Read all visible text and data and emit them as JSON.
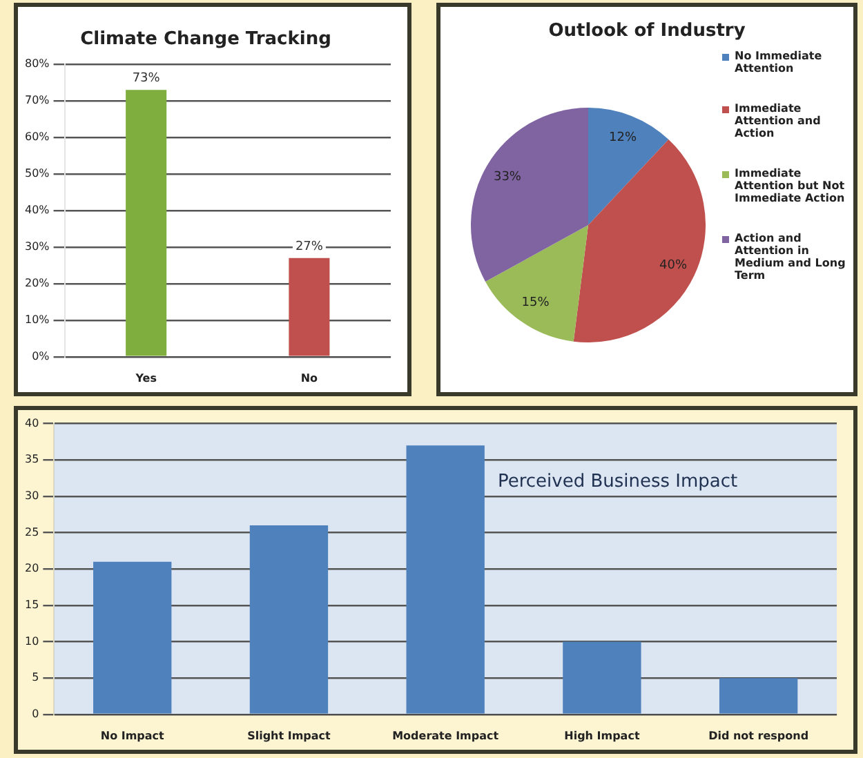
{
  "chart_data": [
    {
      "type": "bar",
      "title": "Climate Change Tracking",
      "categories": [
        "Yes",
        "No"
      ],
      "values": [
        73,
        27
      ],
      "colors": [
        "#7fae3e",
        "#c0504d"
      ],
      "value_labels": [
        "73%",
        "27%"
      ],
      "ylim": [
        0,
        80
      ],
      "yticks": [
        {
          "value": 0,
          "label": "0%"
        },
        {
          "value": 10,
          "label": "10%"
        },
        {
          "value": 20,
          "label": "20%"
        },
        {
          "value": 30,
          "label": "30%"
        },
        {
          "value": 40,
          "label": "40%"
        },
        {
          "value": 50,
          "label": "50%"
        },
        {
          "value": 60,
          "label": "60%"
        },
        {
          "value": 70,
          "label": "70%"
        },
        {
          "value": 80,
          "label": "80%"
        }
      ],
      "grid": "y",
      "legend": false
    },
    {
      "type": "pie",
      "title": "Outlook of Industry",
      "categories": [
        "No Immediate Attention",
        "Immediate Attention and Action",
        "Immediate Attention but Not Immediate Action",
        "Action and Attention in Medium and Long Term"
      ],
      "values": [
        12,
        40,
        15,
        33
      ],
      "colors": [
        "#4f81bd",
        "#c0504d",
        "#9bbb59",
        "#8064a2"
      ],
      "value_labels": [
        "12%",
        "40%",
        "15%",
        "33%"
      ],
      "legend": "right"
    },
    {
      "type": "bar",
      "title": "Perceived Business Impact",
      "categories": [
        "No Impact",
        "Slight Impact",
        "Moderate Impact",
        "High Impact",
        "Did not respond"
      ],
      "values": [
        21,
        26,
        37,
        10,
        5
      ],
      "color": "#4f81bd",
      "ylim": [
        0,
        40
      ],
      "yticks": [
        0,
        5,
        10,
        15,
        20,
        25,
        30,
        35,
        40
      ],
      "grid": "y",
      "legend": false
    }
  ]
}
